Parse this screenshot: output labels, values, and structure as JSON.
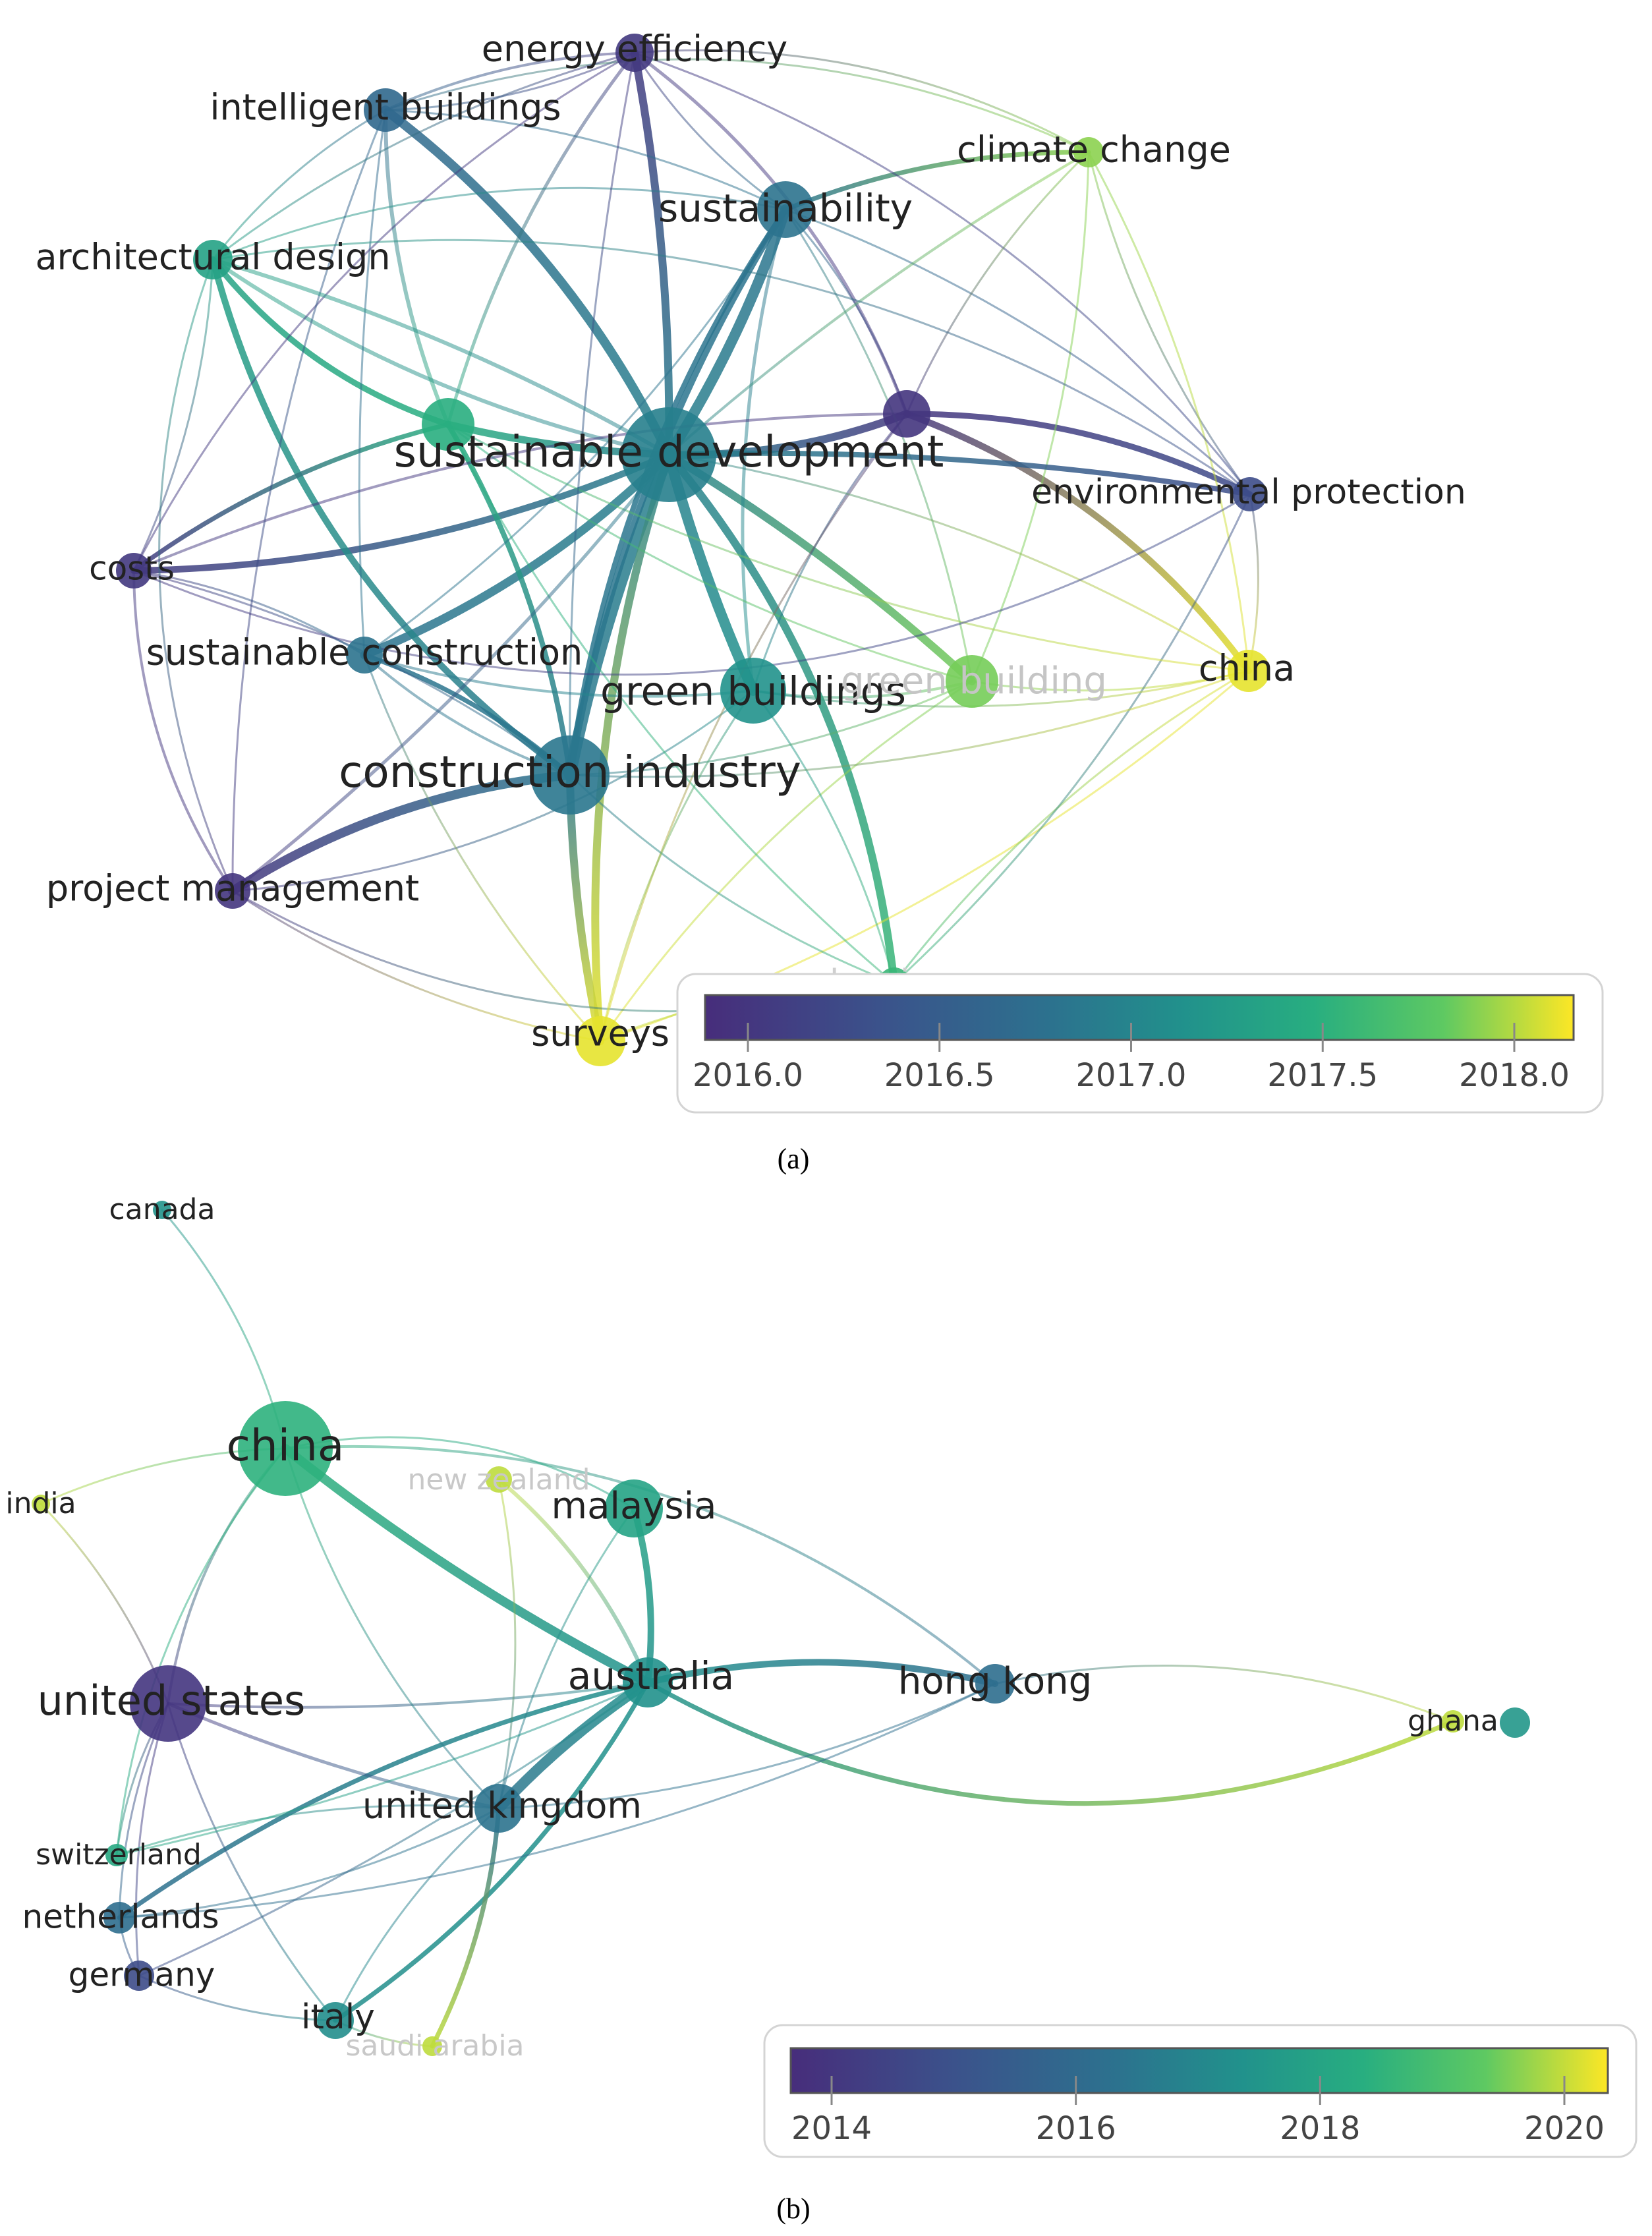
{
  "panel_a": {
    "caption": "(a)",
    "legend": {
      "ticks": [
        "2016.0",
        "2016.5",
        "2017.0",
        "2017.5",
        "2018.0"
      ]
    },
    "nodes": [
      {
        "id": "sd",
        "label": "sustainable development",
        "year": 2016.9
      },
      {
        "id": "ee",
        "label": "energy efficiency",
        "year": 2015.95
      },
      {
        "id": "ib",
        "label": "intelligent buildings",
        "year": 2016.6
      },
      {
        "id": "cc",
        "label": "climate change",
        "year": 2017.9
      },
      {
        "id": "su",
        "label": "sustainability",
        "year": 2016.75
      },
      {
        "id": "ad",
        "label": "architectural design",
        "year": 2017.3
      },
      {
        "id": "gn",
        "label": "",
        "year": 2017.45
      },
      {
        "id": "pu",
        "label": "",
        "year": 2015.9
      },
      {
        "id": "ep",
        "label": "environmental protection",
        "year": 2016.2
      },
      {
        "id": "co",
        "label": "costs",
        "year": 2015.95
      },
      {
        "id": "sc",
        "label": "sustainable construction",
        "year": 2016.75
      },
      {
        "id": "gb",
        "label": "green buildings",
        "year": 2017.1
      },
      {
        "id": "gb2",
        "label": "green building",
        "year": 2017.85
      },
      {
        "id": "ch",
        "label": "china",
        "year": 2018.1
      },
      {
        "id": "ci",
        "label": "construction industry",
        "year": 2016.8
      },
      {
        "id": "pm",
        "label": "project management",
        "year": 2015.9
      },
      {
        "id": "ba",
        "label": "barriers",
        "year": 2017.55
      },
      {
        "id": "sv",
        "label": "surveys",
        "year": 2018.1
      }
    ]
  },
  "panel_b": {
    "caption": "(b)",
    "legend": {
      "ticks": [
        "2014",
        "2016",
        "2018",
        "2020"
      ]
    },
    "nodes": [
      {
        "id": "canada",
        "label": "canada",
        "year": 2017.5
      },
      {
        "id": "china",
        "label": "china",
        "year": 2018.5
      },
      {
        "id": "india",
        "label": "india",
        "year": 2020
      },
      {
        "id": "nz",
        "label": "new zealand",
        "year": 2020
      },
      {
        "id": "malaysia",
        "label": "malaysia",
        "year": 2018
      },
      {
        "id": "us",
        "label": "united states",
        "year": 2014
      },
      {
        "id": "australia",
        "label": "australia",
        "year": 2017.4
      },
      {
        "id": "hk",
        "label": "hong kong",
        "year": 2016.2
      },
      {
        "id": "ghana",
        "label": "ghana",
        "year": 2020
      },
      {
        "id": "ghana2",
        "label": "",
        "year": 2017.6
      },
      {
        "id": "uk",
        "label": "united kingdom",
        "year": 2016.4
      },
      {
        "id": "switzerland",
        "label": "switzerland",
        "year": 2018.2
      },
      {
        "id": "netherlands",
        "label": "netherlands",
        "year": 2016.2
      },
      {
        "id": "germany",
        "label": "germany",
        "year": 2014.8
      },
      {
        "id": "italy",
        "label": "italy",
        "year": 2017.3
      },
      {
        "id": "saudi",
        "label": "saudi arabia",
        "year": 2020
      }
    ]
  }
}
